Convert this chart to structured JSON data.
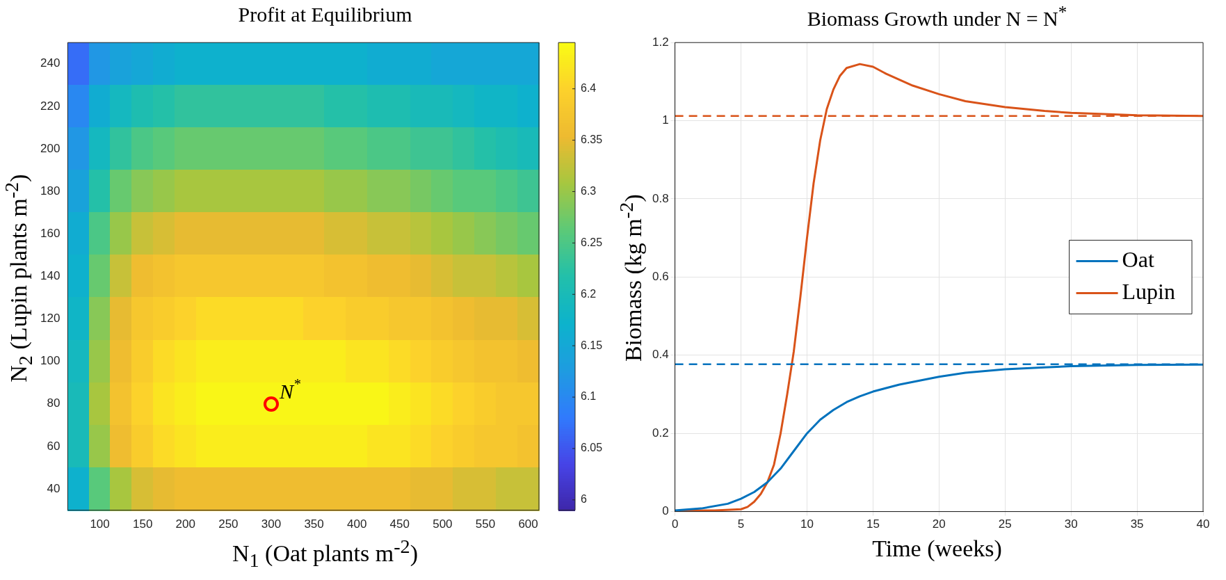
{
  "chart_data": [
    {
      "type": "heatmap",
      "title": "Profit at Equilibrium",
      "xlabel": "N$_{1}$ (Oat plants m$^{-2}$)",
      "ylabel": "N$_{2}$ (Lupin plants m$^{-2}$)",
      "categories": [
        null,
        "100",
        null,
        "150",
        null,
        "200",
        null,
        "250",
        null,
        "300",
        null,
        "350",
        null,
        "400",
        null,
        "450",
        null,
        "500",
        null,
        "550",
        null,
        "600"
      ],
      "y_categories": [
        "240",
        "220",
        "200",
        "180",
        "160",
        "140",
        "120",
        "100",
        "80",
        "60",
        "40"
      ],
      "clim": [
        5.99,
        6.445
      ],
      "cticks": [
        6,
        6.05,
        6.1,
        6.15,
        6.2,
        6.25,
        6.3,
        6.35,
        6.4
      ],
      "cells": [
        [
          6.07,
          6.12,
          6.14,
          6.15,
          6.16,
          6.17,
          6.17,
          6.17,
          6.17,
          6.17,
          6.17,
          6.17,
          6.17,
          6.17,
          6.16,
          6.16,
          6.16,
          6.15,
          6.15,
          6.15,
          6.15,
          6.15
        ],
        [
          6.1,
          6.16,
          6.19,
          6.21,
          6.22,
          6.23,
          6.23,
          6.23,
          6.23,
          6.23,
          6.23,
          6.23,
          6.22,
          6.22,
          6.21,
          6.21,
          6.2,
          6.2,
          6.19,
          6.18,
          6.18,
          6.17
        ],
        [
          6.12,
          6.19,
          6.23,
          6.25,
          6.26,
          6.27,
          6.27,
          6.27,
          6.27,
          6.27,
          6.27,
          6.27,
          6.26,
          6.26,
          6.25,
          6.25,
          6.24,
          6.24,
          6.23,
          6.22,
          6.21,
          6.2
        ],
        [
          6.14,
          6.22,
          6.27,
          6.29,
          6.3,
          6.31,
          6.31,
          6.31,
          6.31,
          6.31,
          6.31,
          6.31,
          6.3,
          6.3,
          6.29,
          6.29,
          6.28,
          6.27,
          6.26,
          6.26,
          6.25,
          6.24
        ],
        [
          6.16,
          6.25,
          6.3,
          6.33,
          6.34,
          6.35,
          6.35,
          6.35,
          6.35,
          6.35,
          6.35,
          6.35,
          6.34,
          6.34,
          6.33,
          6.33,
          6.32,
          6.31,
          6.3,
          6.29,
          6.28,
          6.27
        ],
        [
          6.17,
          6.27,
          6.33,
          6.36,
          6.37,
          6.38,
          6.38,
          6.38,
          6.38,
          6.38,
          6.38,
          6.38,
          6.37,
          6.37,
          6.36,
          6.36,
          6.35,
          6.34,
          6.33,
          6.33,
          6.32,
          6.31
        ],
        [
          6.18,
          6.29,
          6.35,
          6.38,
          6.39,
          6.4,
          6.41,
          6.41,
          6.41,
          6.41,
          6.41,
          6.4,
          6.4,
          6.39,
          6.39,
          6.38,
          6.38,
          6.37,
          6.36,
          6.35,
          6.35,
          6.34
        ],
        [
          6.19,
          6.3,
          6.36,
          6.39,
          6.41,
          6.42,
          6.43,
          6.43,
          6.43,
          6.43,
          6.43,
          6.43,
          6.43,
          6.42,
          6.42,
          6.41,
          6.4,
          6.39,
          6.38,
          6.37,
          6.37,
          6.36
        ],
        [
          6.2,
          6.31,
          6.37,
          6.4,
          6.42,
          6.43,
          6.44,
          6.44,
          6.44,
          6.44,
          6.44,
          6.44,
          6.44,
          6.44,
          6.44,
          6.43,
          6.42,
          6.41,
          6.4,
          6.39,
          6.38,
          6.38
        ],
        [
          6.2,
          6.3,
          6.36,
          6.39,
          6.41,
          6.42,
          6.43,
          6.43,
          6.43,
          6.43,
          6.43,
          6.43,
          6.43,
          6.43,
          6.42,
          6.42,
          6.41,
          6.4,
          6.39,
          6.38,
          6.38,
          6.37
        ],
        [
          6.17,
          6.26,
          6.31,
          6.34,
          6.35,
          6.36,
          6.36,
          6.36,
          6.36,
          6.36,
          6.36,
          6.36,
          6.36,
          6.36,
          6.36,
          6.36,
          6.35,
          6.35,
          6.34,
          6.34,
          6.33,
          6.33
        ]
      ],
      "annotations": [
        {
          "text": "N$^{*}$",
          "x": "300",
          "y": "80"
        }
      ]
    },
    {
      "type": "line",
      "title": "Biomass Growth under N = N$^{*}$",
      "xlabel": "Time (weeks)",
      "ylabel": "Biomass (kg m$^{-2}$)",
      "xlim": [
        0,
        40
      ],
      "xticks": [
        0,
        5,
        10,
        15,
        20,
        25,
        30,
        35,
        40
      ],
      "ylim": [
        0,
        1.2
      ],
      "yticks": [
        0,
        0.2,
        0.4,
        0.6,
        0.8,
        1,
        1.2
      ],
      "grid": true,
      "legend": "right",
      "line_style": "solid",
      "series": [
        {
          "name": "Oat",
          "color": "#0072bd",
          "x": [
            0,
            2,
            4,
            5,
            6,
            7,
            8,
            9,
            10,
            11,
            12,
            13,
            14,
            15,
            17,
            20,
            22,
            25,
            28,
            30,
            35,
            40
          ],
          "values": [
            0.003,
            0.008,
            0.02,
            0.033,
            0.05,
            0.075,
            0.11,
            0.155,
            0.2,
            0.235,
            0.26,
            0.28,
            0.295,
            0.307,
            0.325,
            0.345,
            0.355,
            0.364,
            0.369,
            0.372,
            0.375,
            0.376
          ]
        },
        {
          "name": "Lupin",
          "color": "#d95319",
          "x": [
            0,
            3,
            5,
            5.5,
            6,
            6.5,
            7,
            7.5,
            8,
            8.5,
            9,
            9.5,
            10,
            10.5,
            11,
            11.5,
            12,
            12.5,
            13,
            14,
            15,
            16,
            18,
            20,
            22,
            25,
            28,
            30,
            35,
            40
          ],
          "values": [
            0.002,
            0.003,
            0.006,
            0.012,
            0.025,
            0.045,
            0.075,
            0.12,
            0.2,
            0.3,
            0.41,
            0.55,
            0.7,
            0.84,
            0.95,
            1.03,
            1.08,
            1.115,
            1.135,
            1.145,
            1.138,
            1.12,
            1.09,
            1.068,
            1.05,
            1.035,
            1.025,
            1.02,
            1.014,
            1.012
          ]
        }
      ],
      "ref_lines": [
        {
          "axis": "y",
          "value": 1.012,
          "color": "#d95319",
          "line_style": "dashed"
        },
        {
          "axis": "y",
          "value": 0.377,
          "color": "#0072bd",
          "line_style": "dashed"
        }
      ]
    }
  ]
}
